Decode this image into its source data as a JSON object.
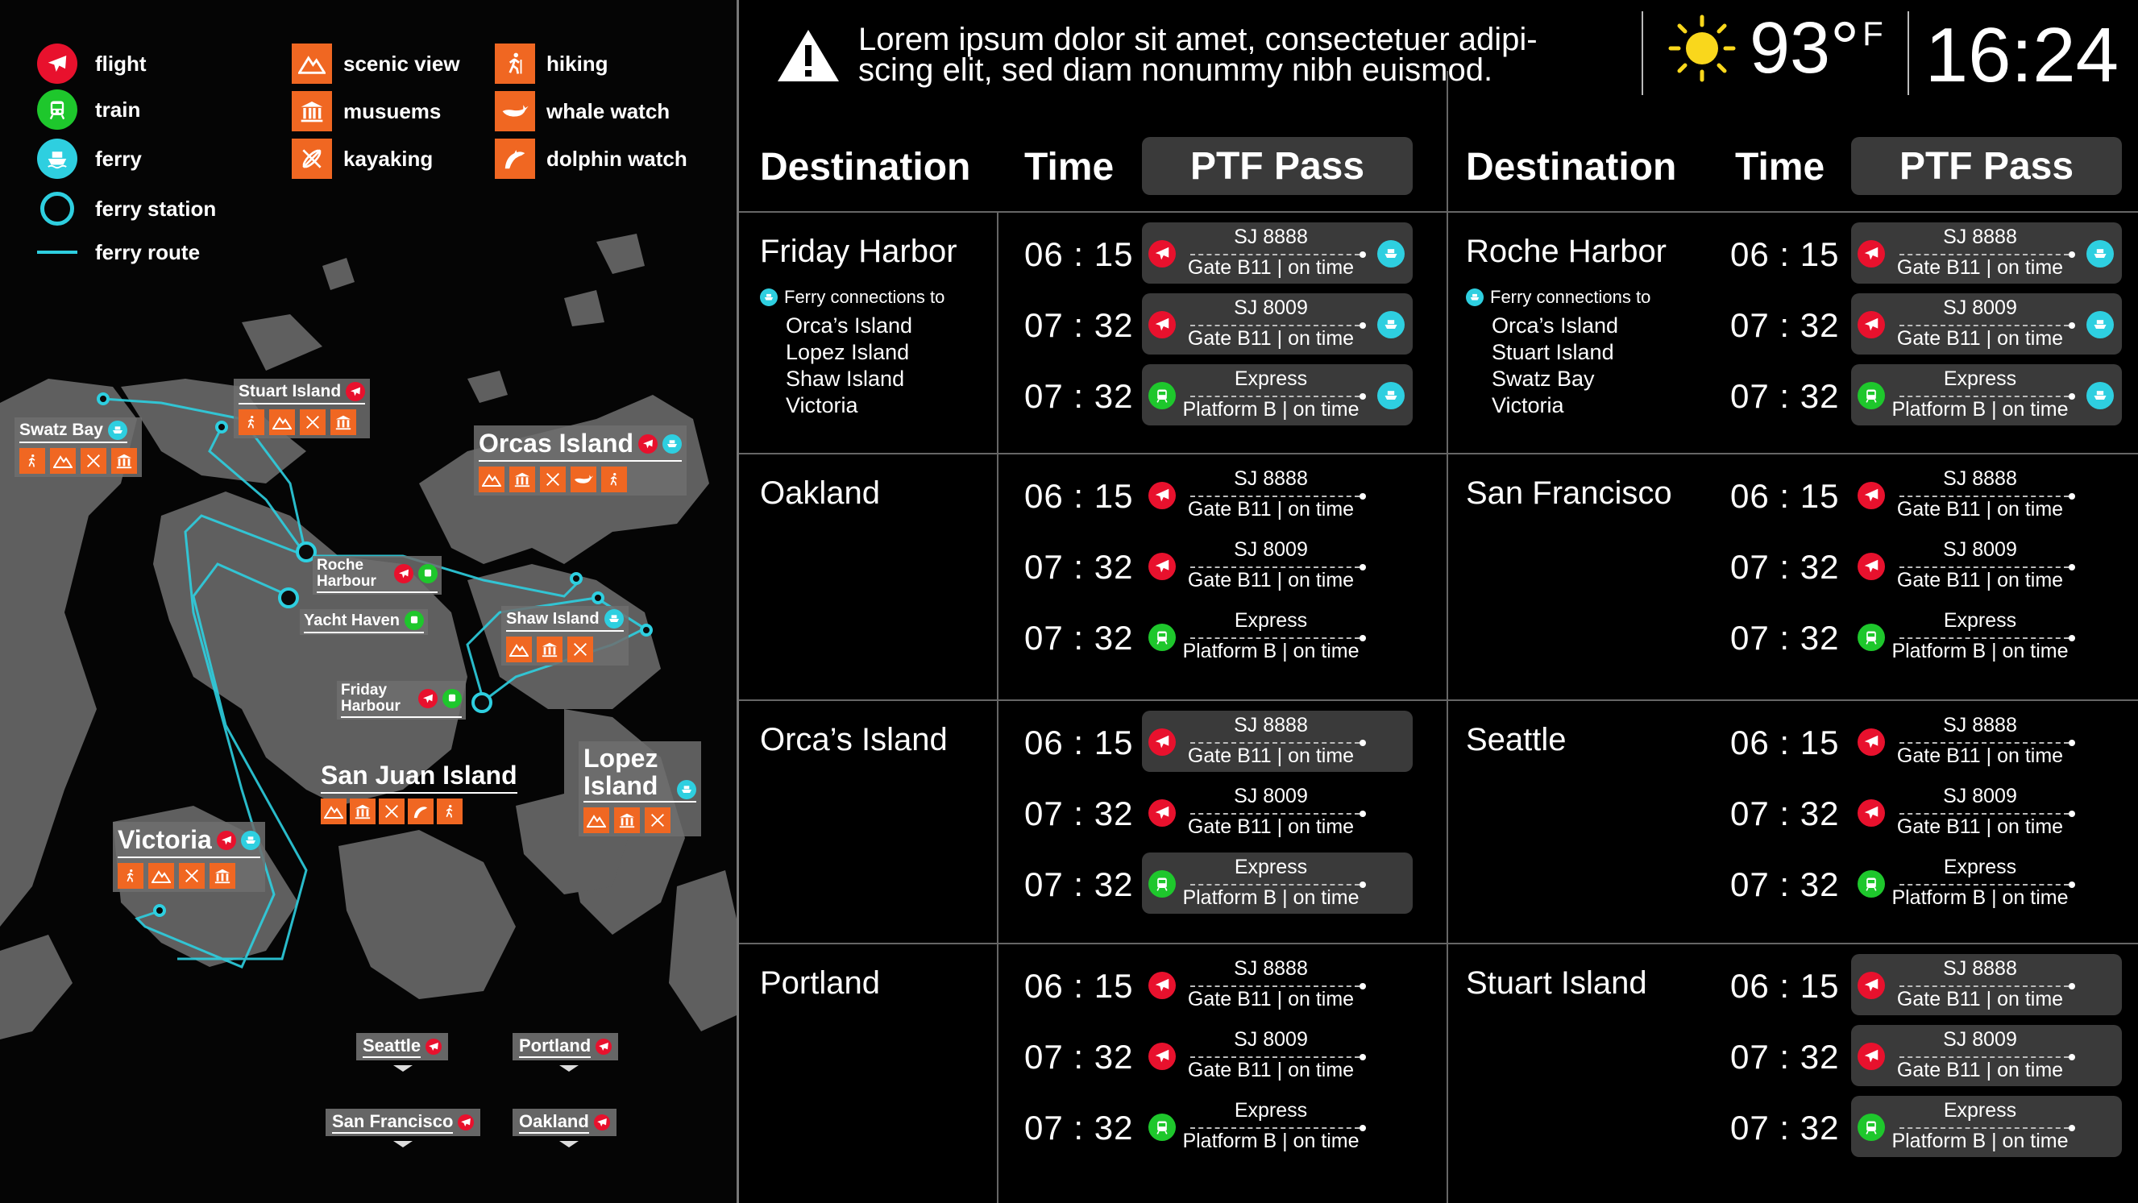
{
  "legend": {
    "modes": [
      {
        "label": "flight",
        "icon": "plane-icon",
        "color": "#e8112d"
      },
      {
        "label": "train",
        "icon": "train-icon",
        "color": "#1ec72c"
      },
      {
        "label": "ferry",
        "icon": "ferry-icon",
        "color": "#2ecfe0"
      },
      {
        "label": "ferry station",
        "icon": "ferry-station-icon",
        "color": "#2ecfe0"
      },
      {
        "label": "ferry route",
        "icon": "ferry-route-line-icon",
        "color": "#2ecfe0"
      }
    ],
    "activities_a": [
      {
        "label": "scenic view",
        "icon": "mountain-icon"
      },
      {
        "label": "musuems",
        "icon": "museum-icon"
      },
      {
        "label": "kayaking",
        "icon": "kayak-icon"
      }
    ],
    "activities_b": [
      {
        "label": "hiking",
        "icon": "hiker-icon"
      },
      {
        "label": "whale watch",
        "icon": "whale-icon"
      },
      {
        "label": "dolphin watch",
        "icon": "dolphin-icon"
      }
    ]
  },
  "map": {
    "stuart": "Stuart Island",
    "swatz": "Swatz Bay",
    "orcas": "Orcas Island",
    "roche": "Roche Harbour",
    "yacht": "Yacht Haven",
    "shaw": "Shaw Island",
    "friday": "Friday Harbour",
    "sanjuan": "San Juan Island",
    "lopez": "Lopez Island",
    "victoria": "Victoria",
    "seattle": "Seattle",
    "portland": "Portland",
    "sanfrancisco": "San Francisco",
    "oakland": "Oakland"
  },
  "header": {
    "alert": "Lorem ipsum dolor sit amet, consectetuer adipi-scing elit, sed diam nonummy nibh euismod.",
    "temperature": "93°",
    "unit": "F",
    "time": "16:24",
    "weather_icon": "sun-icon"
  },
  "board": {
    "headers": {
      "destination": "Destination",
      "time": "Time",
      "pass": "PTF Pass"
    },
    "left": [
      {
        "name": "Friday Harbor",
        "connections_label": "Ferry connections to",
        "connections": [
          "Orca’s Island",
          "Lopez Island",
          "Shaw Island",
          "Victoria"
        ]
      },
      {
        "name": "Oakland"
      },
      {
        "name": "Orca’s Island"
      },
      {
        "name": "Portland"
      }
    ],
    "right": [
      {
        "name": "Roche Harbor",
        "connections_label": "Ferry connections to",
        "connections": [
          "Orca’s Island",
          "Stuart Island",
          "Swatz Bay",
          "Victoria"
        ]
      },
      {
        "name": "San Francisco"
      },
      {
        "name": "Seattle"
      },
      {
        "name": "Stuart Island"
      }
    ],
    "trips": [
      {
        "time": "06 : 15",
        "code": "SJ 8888",
        "gate": "Gate B11 | on time",
        "mode": "flight"
      },
      {
        "time": "07 : 32",
        "code": "SJ 8009",
        "gate": "Gate B11 | on time",
        "mode": "flight"
      },
      {
        "time": "07 : 32",
        "code": "Express",
        "gate": "Platform B | on time",
        "mode": "train"
      }
    ]
  }
}
